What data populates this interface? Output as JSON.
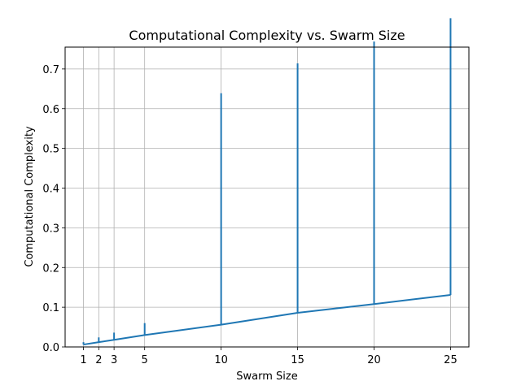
{
  "chart_data": {
    "type": "line",
    "title": "Computational Complexity vs. Swarm Size",
    "xlabel": "Swarm Size",
    "ylabel": "Computational Complexity",
    "xlim": [
      -0.2,
      26.2
    ],
    "ylim": [
      0.0,
      0.755
    ],
    "grid": true,
    "x_ticks": [
      1,
      2,
      3,
      5,
      10,
      15,
      20,
      25
    ],
    "y_ticks": [
      0.0,
      0.1,
      0.2,
      0.3,
      0.4,
      0.5,
      0.6,
      0.7
    ],
    "y_tick_labels": [
      "0.0",
      "0.1",
      "0.2",
      "0.3",
      "0.4",
      "0.5",
      "0.6",
      "0.7"
    ],
    "series": [
      {
        "x": [
          1,
          2,
          3,
          5,
          10,
          15,
          20,
          25
        ],
        "y": [
          0.006,
          0.012,
          0.018,
          0.03,
          0.056,
          0.086,
          0.108,
          0.131
        ],
        "error_top": [
          0.006,
          0.012,
          0.018,
          0.03,
          0.583,
          0.628,
          0.661,
          0.697
        ],
        "error_bottom": [
          0.0,
          0.0,
          0.0,
          0.0,
          0.0,
          0.0,
          0.0,
          0.0
        ],
        "color": "#1f77b4"
      }
    ]
  }
}
